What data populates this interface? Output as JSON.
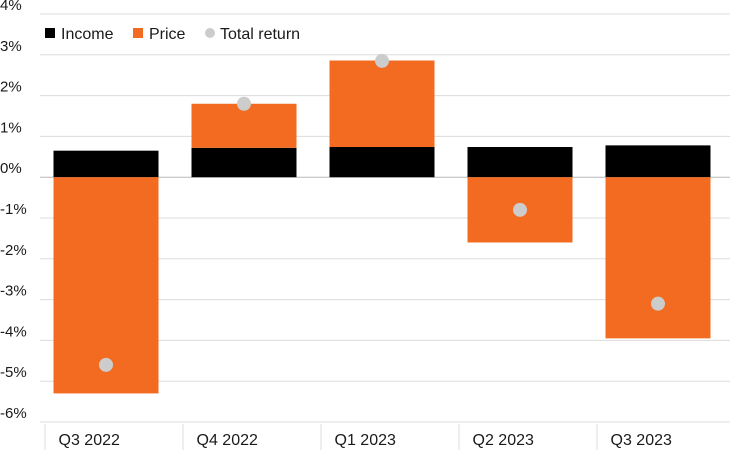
{
  "chart_data": {
    "type": "bar",
    "stacked": true,
    "categories": [
      "Q3 2022",
      "Q4 2022",
      "Q1 2023",
      "Q2 2023",
      "Q3 2023"
    ],
    "series": [
      {
        "name": "Income",
        "type": "bar",
        "values": [
          0.65,
          0.72,
          0.74,
          0.74,
          0.78
        ],
        "color": "#000000"
      },
      {
        "name": "Price",
        "type": "bar",
        "values": [
          -5.3,
          1.08,
          2.12,
          -1.6,
          -3.95
        ],
        "color": "#f26b21"
      },
      {
        "name": "Total return",
        "type": "scatter",
        "values": [
          -4.6,
          1.8,
          2.85,
          -0.8,
          -3.1
        ],
        "color": "#cccccc"
      }
    ],
    "ylim": [
      -6,
      4
    ],
    "yticks": [
      4,
      3,
      2,
      1,
      0,
      -1,
      -2,
      -3,
      -4,
      -5,
      -6
    ],
    "ytick_labels": [
      "4%",
      "3%",
      "2%",
      "1%",
      "0%",
      "-1%",
      "-2%",
      "-3%",
      "-4%",
      "-5%",
      "-6%"
    ],
    "grid": true,
    "legend_position": "top-left"
  }
}
